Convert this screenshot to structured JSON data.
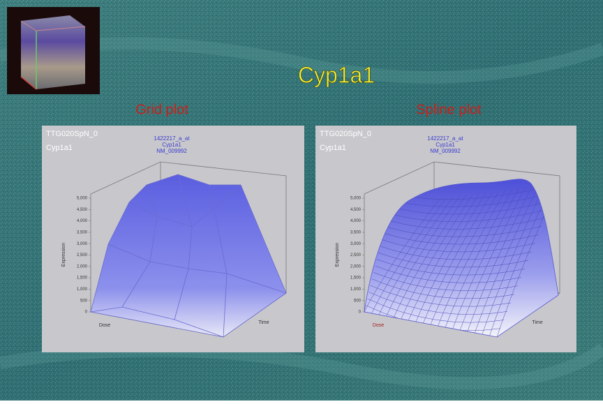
{
  "slide": {
    "title": "Cyp1a1",
    "panels": [
      {
        "heading": "Grid plot",
        "dataset": "TTG020SpN_0",
        "gene": "Cyp1a1",
        "probe": [
          "1422217_a_at",
          "Cyp1a1",
          "NM_009992"
        ],
        "y_axis_label": "Expression",
        "x_axis_label": "Dose",
        "z_axis_label": "Time",
        "y_ticks": [
          "5,000",
          "4,500",
          "4,000",
          "3,500",
          "3,000",
          "2,500",
          "2,000",
          "1,500",
          "1,000",
          "500",
          "0"
        ]
      },
      {
        "heading": "Spline plot",
        "dataset": "TTG020SpN_0",
        "gene": "Cyp1a1",
        "probe": [
          "1422217_a_at",
          "Cyp1a1",
          "NM_009992"
        ],
        "y_axis_label": "Expression",
        "x_axis_label": "Dose",
        "z_axis_label": "Time",
        "y_ticks": [
          "5,000",
          "4,500",
          "4,000",
          "3,500",
          "3,000",
          "2,500",
          "2,000",
          "1,500",
          "1,000",
          "500",
          "0"
        ]
      }
    ]
  }
}
